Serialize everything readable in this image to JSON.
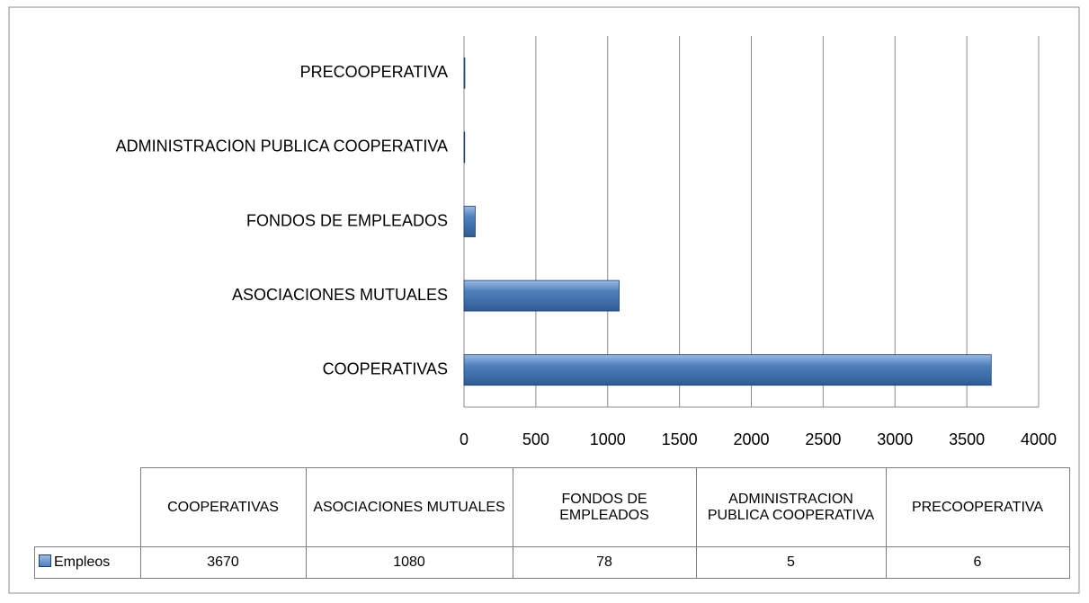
{
  "chart_data": {
    "type": "bar",
    "orientation": "horizontal",
    "categories": [
      "COOPERATIVAS",
      "ASOCIACIONES MUTUALES",
      "FONDOS DE EMPLEADOS",
      "ADMINISTRACION PUBLICA COOPERATIVA",
      "PRECOOPERATIVA"
    ],
    "series": [
      {
        "name": "Empleos",
        "color": "#4f81bd",
        "values": [
          3670,
          1080,
          78,
          5,
          6
        ]
      }
    ],
    "xlim": [
      0,
      4000
    ],
    "xticks": [
      0,
      500,
      1000,
      1500,
      2000,
      2500,
      3000,
      3500,
      4000
    ],
    "grid": true,
    "data_table": true
  }
}
